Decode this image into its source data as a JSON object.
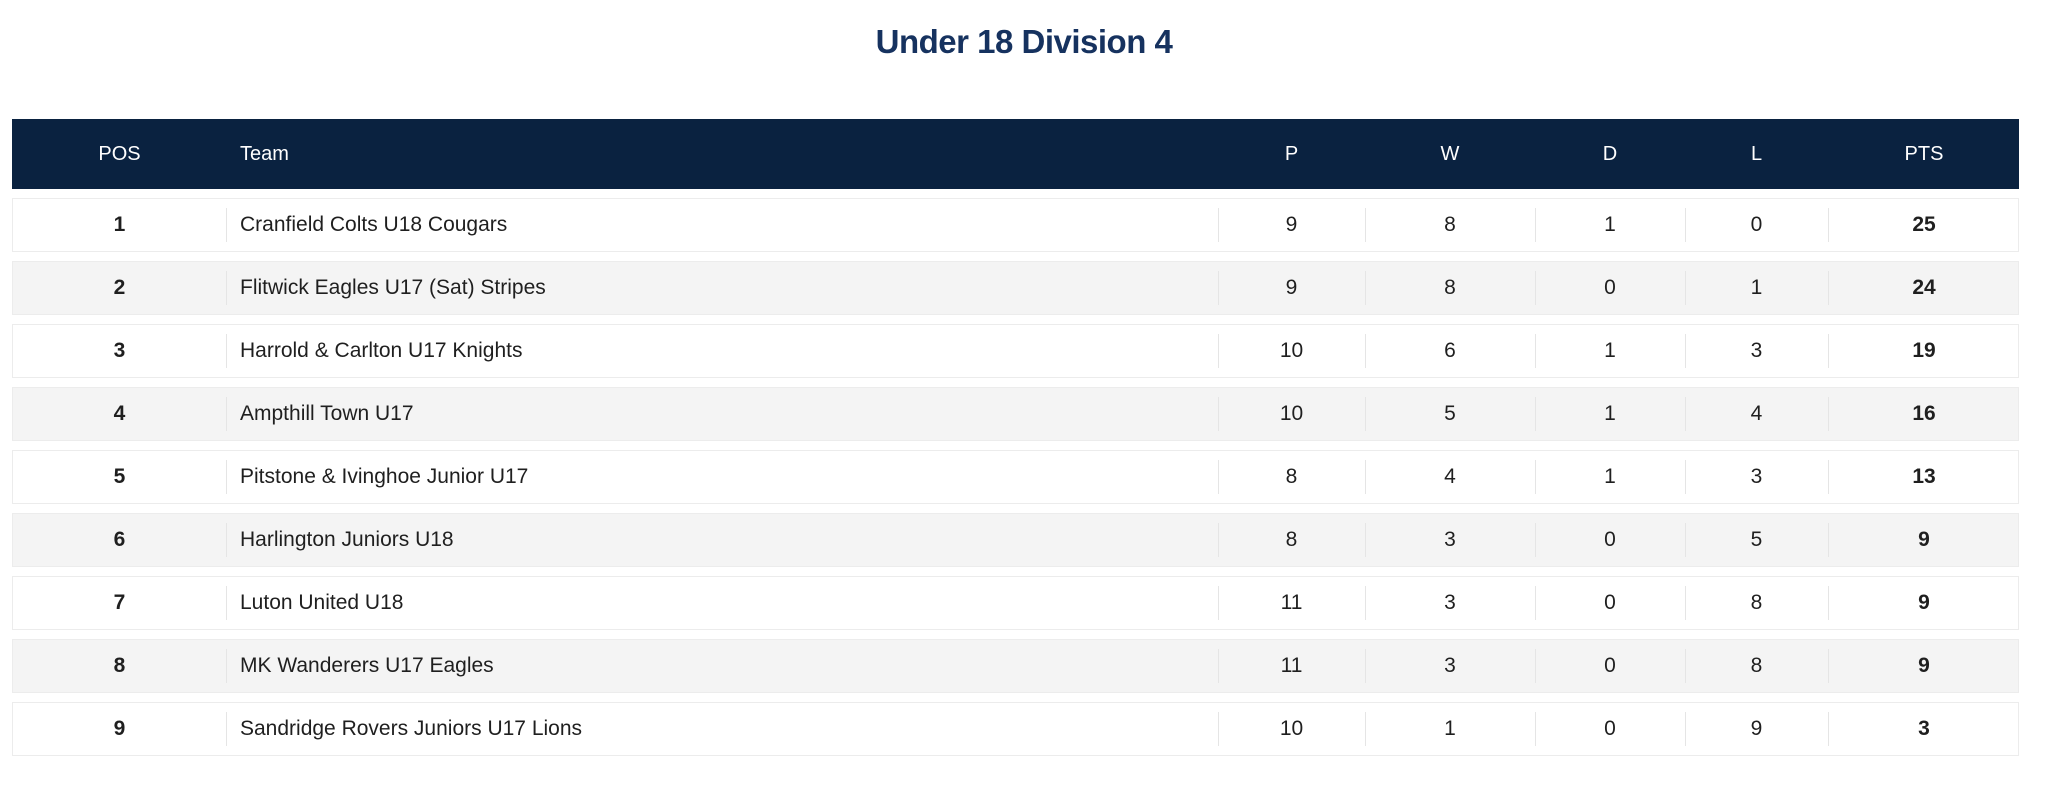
{
  "title": "Under 18 Division 4",
  "theme": {
    "page_bg": "#ffffff",
    "title_color": "#16325f",
    "header_bg": "#0a2240",
    "header_text": "#ffffff",
    "row_bg": "#ffffff",
    "row_alt_bg": "#f4f4f4",
    "row_border": "#ececec",
    "divider": "#e5e5e5",
    "text_color": "#1f1f1f"
  },
  "table": {
    "columns": [
      "POS",
      "Team",
      "P",
      "W",
      "D",
      "L",
      "PTS"
    ],
    "rows": [
      {
        "pos": "1",
        "team": "Cranfield Colts U18 Cougars",
        "p": "9",
        "w": "8",
        "d": "1",
        "l": "0",
        "pts": "25"
      },
      {
        "pos": "2",
        "team": "Flitwick Eagles U17 (Sat) Stripes",
        "p": "9",
        "w": "8",
        "d": "0",
        "l": "1",
        "pts": "24"
      },
      {
        "pos": "3",
        "team": "Harrold & Carlton U17 Knights",
        "p": "10",
        "w": "6",
        "d": "1",
        "l": "3",
        "pts": "19"
      },
      {
        "pos": "4",
        "team": "Ampthill Town U17",
        "p": "10",
        "w": "5",
        "d": "1",
        "l": "4",
        "pts": "16"
      },
      {
        "pos": "5",
        "team": "Pitstone & Ivinghoe Junior U17",
        "p": "8",
        "w": "4",
        "d": "1",
        "l": "3",
        "pts": "13"
      },
      {
        "pos": "6",
        "team": "Harlington Juniors U18",
        "p": "8",
        "w": "3",
        "d": "0",
        "l": "5",
        "pts": "9"
      },
      {
        "pos": "7",
        "team": "Luton United U18",
        "p": "11",
        "w": "3",
        "d": "0",
        "l": "8",
        "pts": "9"
      },
      {
        "pos": "8",
        "team": "MK Wanderers U17 Eagles",
        "p": "11",
        "w": "3",
        "d": "0",
        "l": "8",
        "pts": "9"
      },
      {
        "pos": "9",
        "team": "Sandridge Rovers Juniors U17 Lions",
        "p": "10",
        "w": "1",
        "d": "0",
        "l": "9",
        "pts": "3"
      }
    ]
  }
}
